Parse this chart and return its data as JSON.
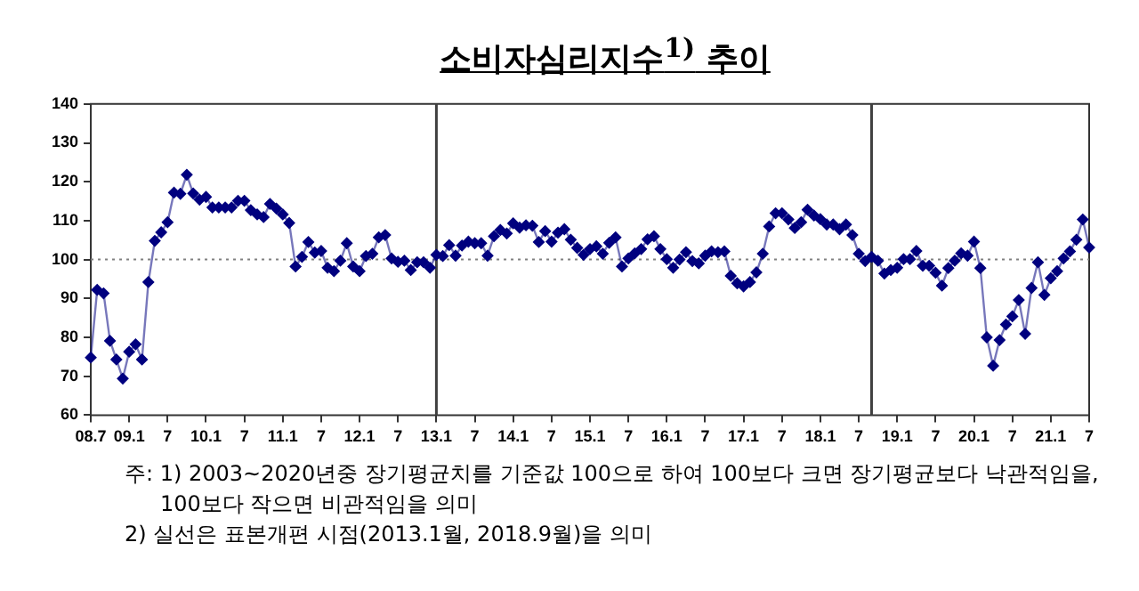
{
  "chart_data": {
    "type": "line",
    "title": "소비자심리지수$^{1)}$ 추이",
    "x": [
      "2008-07",
      "2008-08",
      "2008-09",
      "2008-10",
      "2008-11",
      "2008-12",
      "2009-01",
      "2009-02",
      "2009-03",
      "2009-04",
      "2009-05",
      "2009-06",
      "2009-07",
      "2009-08",
      "2009-09",
      "2009-10",
      "2009-11",
      "2009-12",
      "2010-01",
      "2010-02",
      "2010-03",
      "2010-04",
      "2010-05",
      "2010-06",
      "2010-07",
      "2010-08",
      "2010-09",
      "2010-10",
      "2010-11",
      "2010-12",
      "2011-01",
      "2011-02",
      "2011-03",
      "2011-04",
      "2011-05",
      "2011-06",
      "2011-07",
      "2011-08",
      "2011-09",
      "2011-10",
      "2011-11",
      "2011-12",
      "2012-01",
      "2012-02",
      "2012-03",
      "2012-04",
      "2012-05",
      "2012-06",
      "2012-07",
      "2012-08",
      "2012-09",
      "2012-10",
      "2012-11",
      "2012-12",
      "2013-01",
      "2013-02",
      "2013-03",
      "2013-04",
      "2013-05",
      "2013-06",
      "2013-07",
      "2013-08",
      "2013-09",
      "2013-10",
      "2013-11",
      "2013-12",
      "2014-01",
      "2014-02",
      "2014-03",
      "2014-04",
      "2014-05",
      "2014-06",
      "2014-07",
      "2014-08",
      "2014-09",
      "2014-10",
      "2014-11",
      "2014-12",
      "2015-01",
      "2015-02",
      "2015-03",
      "2015-04",
      "2015-05",
      "2015-06",
      "2015-07",
      "2015-08",
      "2015-09",
      "2015-10",
      "2015-11",
      "2015-12",
      "2016-01",
      "2016-02",
      "2016-03",
      "2016-04",
      "2016-05",
      "2016-06",
      "2016-07",
      "2016-08",
      "2016-09",
      "2016-10",
      "2016-11",
      "2016-12",
      "2017-01",
      "2017-02",
      "2017-03",
      "2017-04",
      "2017-05",
      "2017-06",
      "2017-07",
      "2017-08",
      "2017-09",
      "2017-10",
      "2017-11",
      "2017-12",
      "2018-01",
      "2018-02",
      "2018-03",
      "2018-04",
      "2018-05",
      "2018-06",
      "2018-07",
      "2018-08",
      "2018-09",
      "2018-10",
      "2018-11",
      "2018-12",
      "2019-01",
      "2019-02",
      "2019-03",
      "2019-04",
      "2019-05",
      "2019-06",
      "2019-07",
      "2019-08",
      "2019-09",
      "2019-10",
      "2019-11",
      "2019-12",
      "2020-01",
      "2020-02",
      "2020-03",
      "2020-04",
      "2020-05",
      "2020-06",
      "2020-07",
      "2020-08",
      "2020-09",
      "2020-10",
      "2020-11",
      "2020-12",
      "2021-01",
      "2021-02",
      "2021-03",
      "2021-04",
      "2021-05",
      "2021-06",
      "2021-07"
    ],
    "series": [
      {
        "color": "#00007f",
        "values": [
          74.8,
          92.2,
          91.3,
          79.1,
          74.3,
          69.4,
          76.3,
          78.2,
          74.3,
          94.2,
          104.8,
          107.0,
          109.6,
          117.2,
          116.9,
          121.8,
          117.0,
          115.4,
          116.1,
          113.4,
          113.4,
          113.4,
          113.4,
          115.1,
          115.1,
          112.7,
          111.6,
          110.9,
          114.3,
          113.1,
          111.6,
          109.4,
          98.2,
          100.7,
          104.5,
          101.8,
          102.2,
          97.9,
          97.0,
          99.7,
          104.2,
          98.2,
          97.0,
          100.9,
          101.5,
          105.7,
          106.3,
          100.3,
          99.4,
          99.7,
          97.3,
          99.3,
          99.3,
          97.9,
          101.2,
          100.9,
          103.7,
          101.0,
          103.6,
          104.6,
          104.2,
          104.2,
          101.0,
          106.0,
          107.6,
          106.7,
          109.3,
          108.2,
          108.8,
          108.7,
          104.5,
          107.3,
          104.6,
          106.9,
          107.8,
          105.1,
          103.0,
          101.2,
          102.7,
          103.4,
          101.5,
          104.3,
          105.7,
          98.2,
          100.3,
          101.6,
          102.7,
          105.2,
          106.0,
          102.7,
          100.1,
          97.9,
          100.0,
          101.9,
          99.6,
          99.0,
          101.0,
          102.1,
          101.9,
          102.1,
          95.8,
          93.9,
          93.1,
          94.2,
          96.7,
          101.5,
          108.5,
          111.9,
          111.9,
          110.3,
          108.1,
          109.6,
          112.8,
          111.3,
          110.4,
          109.0,
          109.0,
          107.8,
          109.0,
          106.3,
          101.5,
          99.6,
          100.7,
          99.7,
          96.4,
          97.3,
          97.9,
          100.1,
          100.1,
          102.2,
          98.4,
          98.4,
          96.6,
          93.3,
          97.8,
          99.7,
          101.6,
          101.0,
          104.6,
          97.8,
          80.0,
          72.7,
          79.3,
          83.3,
          85.4,
          89.6,
          80.9,
          92.7,
          99.3,
          90.9,
          95.2,
          97.0,
          100.3,
          102.1,
          105.1,
          110.3,
          103.1
        ]
      }
    ],
    "xlim": [
      "2008-07",
      "2021-07"
    ],
    "xticks": [
      {
        "value": "2008-07",
        "label": "08.7"
      },
      {
        "value": "2009-01",
        "label": "09.1"
      },
      {
        "value": "2009-07",
        "label": "7"
      },
      {
        "value": "2010-01",
        "label": "10.1"
      },
      {
        "value": "2010-07",
        "label": "7"
      },
      {
        "value": "2011-01",
        "label": "11.1"
      },
      {
        "value": "2011-07",
        "label": "7"
      },
      {
        "value": "2012-01",
        "label": "12.1"
      },
      {
        "value": "2012-07",
        "label": "7"
      },
      {
        "value": "2013-01",
        "label": "13.1"
      },
      {
        "value": "2013-07",
        "label": "7"
      },
      {
        "value": "2014-01",
        "label": "14.1"
      },
      {
        "value": "2014-07",
        "label": "7"
      },
      {
        "value": "2015-01",
        "label": "15.1"
      },
      {
        "value": "2015-07",
        "label": "7"
      },
      {
        "value": "2016-01",
        "label": "16.1"
      },
      {
        "value": "2016-07",
        "label": "7"
      },
      {
        "value": "2017-01",
        "label": "17.1"
      },
      {
        "value": "2017-07",
        "label": "7"
      },
      {
        "value": "2018-01",
        "label": "18.1"
      },
      {
        "value": "2018-07",
        "label": "7"
      },
      {
        "value": "2019-01",
        "label": "19.1"
      },
      {
        "value": "2019-07",
        "label": "7"
      },
      {
        "value": "2020-01",
        "label": "20.1"
      },
      {
        "value": "2020-07",
        "label": "7"
      },
      {
        "value": "2021-01",
        "label": "21.1"
      },
      {
        "value": "2021-07",
        "label": "7"
      }
    ],
    "ylim": [
      60,
      140
    ],
    "yticks": [
      60,
      70,
      80,
      90,
      100,
      110,
      120,
      130,
      140
    ],
    "ref_lines": [
      {
        "axis": "y",
        "value": 100,
        "color": "#808080",
        "line_style": "dotted"
      },
      {
        "axis": "x",
        "value": "2013-01",
        "color": "#404040",
        "line_style": "solid"
      },
      {
        "axis": "x",
        "value": "2018-09",
        "color": "#404040",
        "line_style": "solid"
      }
    ],
    "annotations": [
      "주: 1) 2003~2020년중 장기평균치를 기준값 100으로 하여 100보다 크면 장기평균보다 낙관적임을, 100보다 작으면 비관적임을 의미",
      "2) 실선은 표본개편 시점(2013.1월, 2018.9월)을 의미"
    ],
    "grid": false,
    "legend": false,
    "marker": "diamond",
    "line_style": "solid"
  }
}
